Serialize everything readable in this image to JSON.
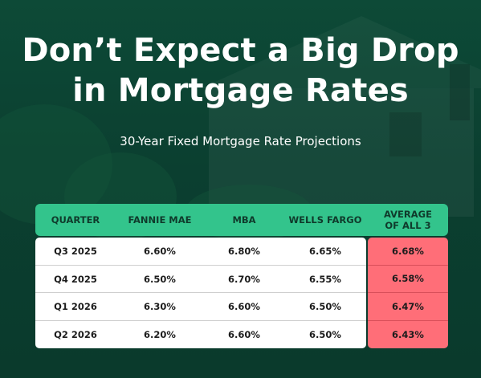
{
  "title_line1": "Don’t Expect a Big Drop",
  "title_line2": "in Mortgage Rates",
  "subtitle": "30-Year Fixed Mortgage Rate Projections",
  "colors": {
    "background": "#0d4a37",
    "header": "#33c48c",
    "average": "#ff6e78",
    "text_dark": "#0f3a2b"
  },
  "table": {
    "headers": [
      "QUARTER",
      "FANNIE MAE",
      "MBA",
      "WELLS FARGO",
      "AVERAGE",
      "OF ALL 3"
    ],
    "rows": [
      [
        "Q3 2025",
        "6.60%",
        "6.80%",
        "6.65%",
        "6.68%"
      ],
      [
        "Q4 2025",
        "6.50%",
        "6.70%",
        "6.55%",
        "6.58%"
      ],
      [
        "Q1 2026",
        "6.30%",
        "6.60%",
        "6.50%",
        "6.47%"
      ],
      [
        "Q2 2026",
        "6.20%",
        "6.60%",
        "6.50%",
        "6.43%"
      ]
    ]
  }
}
